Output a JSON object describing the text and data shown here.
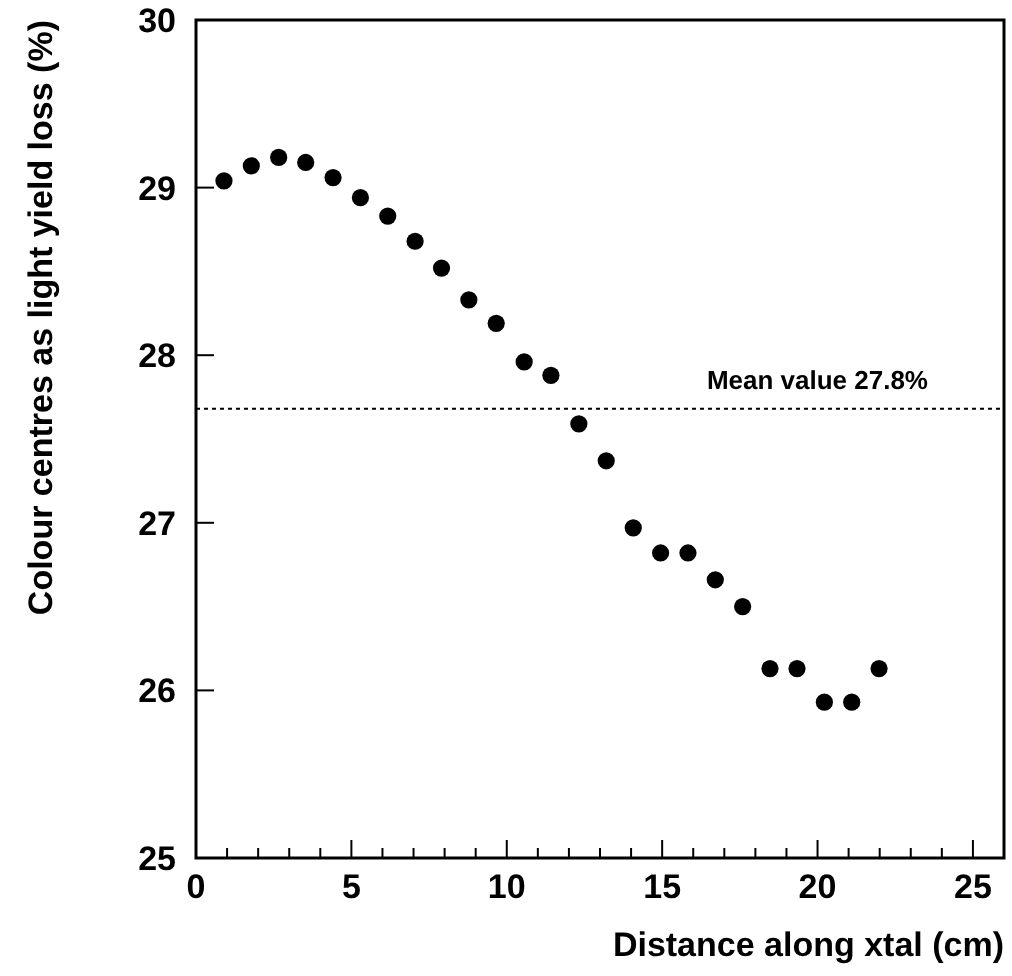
{
  "chart_data": {
    "type": "scatter",
    "xlabel": "Distance along xtal (cm)",
    "ylabel": "Colour centres as light yield loss (%)",
    "x": [
      0.9,
      1.78,
      2.66,
      3.53,
      4.41,
      5.29,
      6.17,
      7.05,
      7.9,
      8.78,
      9.66,
      10.56,
      11.42,
      12.32,
      13.2,
      14.07,
      14.95,
      15.83,
      16.71,
      17.59,
      18.47,
      19.34,
      20.22,
      21.1,
      21.98
    ],
    "series": [
      {
        "color": "#000000",
        "values": [
          29.04,
          29.13,
          29.18,
          29.15,
          29.06,
          28.94,
          28.83,
          28.68,
          28.52,
          28.33,
          28.19,
          27.96,
          27.88,
          27.59,
          27.37,
          26.97,
          26.82,
          26.82,
          26.66,
          26.5,
          26.13,
          26.13,
          25.93,
          25.93,
          26.13
        ]
      }
    ],
    "xlim": [
      0,
      26
    ],
    "ylim": [
      25,
      30
    ],
    "xticks": [
      0,
      {
        "value": 1,
        "label": null
      },
      {
        "value": 2,
        "label": null
      },
      {
        "value": 3,
        "label": null
      },
      {
        "value": 4,
        "label": null
      },
      5,
      {
        "value": 6,
        "label": null
      },
      {
        "value": 7,
        "label": null
      },
      {
        "value": 8,
        "label": null
      },
      {
        "value": 9,
        "label": null
      },
      10,
      {
        "value": 11,
        "label": null
      },
      {
        "value": 12,
        "label": null
      },
      {
        "value": 13,
        "label": null
      },
      {
        "value": 14,
        "label": null
      },
      15,
      {
        "value": 16,
        "label": null
      },
      {
        "value": 17,
        "label": null
      },
      {
        "value": 18,
        "label": null
      },
      {
        "value": 19,
        "label": null
      },
      20,
      {
        "value": 21,
        "label": null
      },
      {
        "value": 22,
        "label": null
      },
      {
        "value": 23,
        "label": null
      },
      {
        "value": 24,
        "label": null
      },
      25
    ],
    "yticks": [
      25,
      26,
      27,
      28,
      29,
      30
    ],
    "ref_lines": [
      {
        "axis": "y",
        "value": 27.68,
        "label": "Mean value 27.8%",
        "line_style": "dotted"
      }
    ],
    "marker": "circle",
    "grid": false
  }
}
